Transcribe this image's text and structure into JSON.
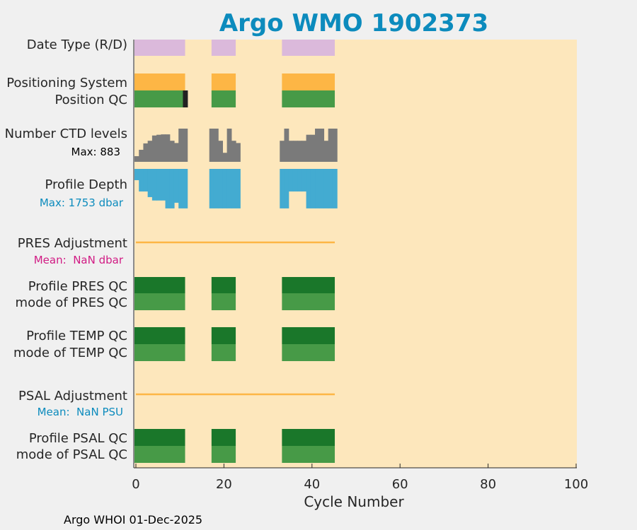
{
  "title": "Argo WMO 1902373",
  "footer": "Argo WHOI 01-Dec-2025",
  "colors": {
    "title": "#0c8bbd",
    "background": "#fde7bc",
    "date_type": "#dbb9db",
    "positioning": "#fdb645",
    "qc_dark": "#1a772a",
    "qc_light": "#479a47",
    "black": "#222222",
    "gray": "#7a7a7a",
    "depth": "#43abd1",
    "adjust_line": "#fdb645",
    "cyan_text": "#0c8bbd",
    "magenta_text": "#d11b84"
  },
  "chart_data": {
    "type": "bar",
    "title": "Argo WMO 1902373",
    "xlabel": "Cycle Number",
    "xlim": [
      0,
      100
    ],
    "xticks": [
      0,
      20,
      40,
      60,
      80,
      100
    ],
    "row_labels": [
      "Date Type (R/D)",
      "Positioning System",
      "Position QC",
      "Number CTD levels",
      "Max: 883",
      "Profile Depth",
      "Max: 1753 dbar",
      "PRES Adjustment",
      "Mean:  NaN dbar",
      "Profile PRES QC",
      "mode of PRES QC",
      "Profile TEMP QC",
      "mode of TEMP QC",
      "PSAL Adjustment",
      "Mean:  NaN PSU",
      "Profile PSAL QC",
      "mode of PSAL QC"
    ],
    "cycle_segments": [
      [
        0,
        11.5
      ],
      [
        17.5,
        23
      ],
      [
        33.5,
        45.5
      ]
    ],
    "ctd_max": 883,
    "depth_max_dbar": 1753,
    "pres_adjustment_mean": "NaN",
    "psal_adjustment_mean": "NaN",
    "position_qc_bad_cycles": [
      11
    ],
    "ctd_levels": [
      [
        0,
        150
      ],
      [
        1,
        320
      ],
      [
        2,
        490
      ],
      [
        3,
        560
      ],
      [
        4,
        700
      ],
      [
        5,
        720
      ],
      [
        6,
        730
      ],
      [
        7,
        730
      ],
      [
        8,
        560
      ],
      [
        9,
        500
      ],
      [
        10,
        883
      ],
      [
        11,
        883
      ],
      [
        17,
        883
      ],
      [
        18,
        883
      ],
      [
        19,
        560
      ],
      [
        20,
        240
      ],
      [
        21,
        883
      ],
      [
        22,
        560
      ],
      [
        23,
        500
      ],
      [
        33,
        560
      ],
      [
        34,
        883
      ],
      [
        35,
        560
      ],
      [
        36,
        560
      ],
      [
        37,
        560
      ],
      [
        38,
        560
      ],
      [
        39,
        720
      ],
      [
        40,
        720
      ],
      [
        41,
        883
      ],
      [
        42,
        883
      ],
      [
        43,
        560
      ],
      [
        44,
        883
      ],
      [
        45,
        883
      ]
    ],
    "profile_depth": [
      [
        0,
        500
      ],
      [
        1,
        1000
      ],
      [
        2,
        1000
      ],
      [
        3,
        1250
      ],
      [
        4,
        1400
      ],
      [
        5,
        1400
      ],
      [
        6,
        1400
      ],
      [
        7,
        1750
      ],
      [
        8,
        1750
      ],
      [
        9,
        1500
      ],
      [
        10,
        1750
      ],
      [
        11,
        1750
      ],
      [
        17,
        1750
      ],
      [
        18,
        1750
      ],
      [
        19,
        1750
      ],
      [
        20,
        1750
      ],
      [
        21,
        1750
      ],
      [
        22,
        1750
      ],
      [
        23,
        1750
      ],
      [
        33,
        1750
      ],
      [
        34,
        1750
      ],
      [
        35,
        1000
      ],
      [
        36,
        1000
      ],
      [
        37,
        1000
      ],
      [
        38,
        1000
      ],
      [
        39,
        1750
      ],
      [
        40,
        1750
      ],
      [
        41,
        1750
      ],
      [
        42,
        1750
      ],
      [
        43,
        1750
      ],
      [
        44,
        1750
      ],
      [
        45,
        1750
      ]
    ]
  }
}
